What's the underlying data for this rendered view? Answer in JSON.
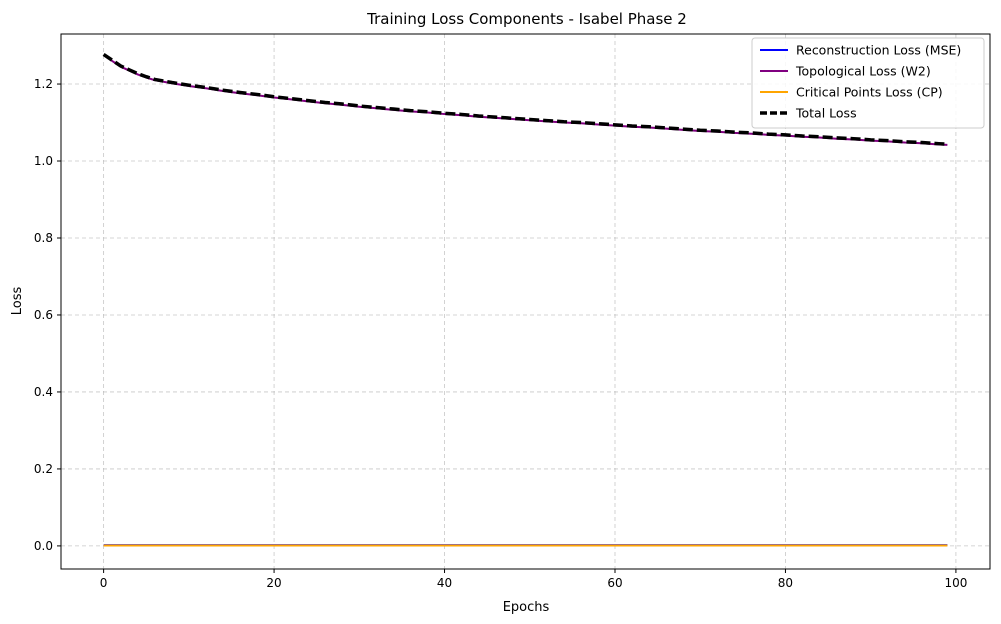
{
  "chart_data": {
    "type": "line",
    "title": "Training Loss Components - Isabel Phase 2",
    "xlabel": "Epochs",
    "ylabel": "Loss",
    "xlim": [
      -5,
      104
    ],
    "ylim": [
      -0.06,
      1.33
    ],
    "xticks": [
      0,
      20,
      40,
      60,
      80,
      100
    ],
    "yticks": [
      0.0,
      0.2,
      0.4,
      0.6,
      0.8,
      1.0,
      1.2
    ],
    "ytick_labels": [
      "0.0",
      "0.2",
      "0.4",
      "0.6",
      "0.8",
      "1.0",
      "1.2"
    ],
    "grid": true,
    "legend_position": "top-right",
    "x": [
      0,
      1,
      2,
      3,
      4,
      5,
      6,
      8,
      10,
      12,
      14,
      16,
      18,
      20,
      22,
      24,
      26,
      28,
      30,
      32,
      34,
      36,
      38,
      40,
      42,
      44,
      46,
      48,
      50,
      52,
      54,
      56,
      58,
      60,
      62,
      64,
      66,
      68,
      70,
      72,
      74,
      76,
      78,
      80,
      82,
      84,
      86,
      88,
      90,
      92,
      94,
      96,
      98,
      99
    ],
    "series": [
      {
        "name": "Reconstruction Loss (MSE)",
        "color": "#0000ff",
        "style": "solid",
        "values": [
          0.002,
          0.002,
          0.002,
          0.002,
          0.002,
          0.002,
          0.002,
          0.002,
          0.002,
          0.002,
          0.002,
          0.002,
          0.002,
          0.002,
          0.002,
          0.002,
          0.002,
          0.002,
          0.002,
          0.002,
          0.002,
          0.002,
          0.002,
          0.002,
          0.002,
          0.002,
          0.002,
          0.002,
          0.002,
          0.002,
          0.002,
          0.002,
          0.002,
          0.002,
          0.002,
          0.002,
          0.002,
          0.002,
          0.002,
          0.002,
          0.002,
          0.002,
          0.002,
          0.002,
          0.002,
          0.002,
          0.002,
          0.002,
          0.002,
          0.002,
          0.002,
          0.002,
          0.002,
          0.002
        ]
      },
      {
        "name": "Topological Loss (W2)",
        "color": "#800080",
        "style": "solid",
        "values": [
          1.275,
          1.26,
          1.245,
          1.235,
          1.225,
          1.217,
          1.21,
          1.202,
          1.195,
          1.189,
          1.182,
          1.176,
          1.171,
          1.165,
          1.16,
          1.155,
          1.15,
          1.146,
          1.141,
          1.137,
          1.133,
          1.129,
          1.126,
          1.122,
          1.119,
          1.115,
          1.112,
          1.109,
          1.106,
          1.103,
          1.1,
          1.098,
          1.095,
          1.092,
          1.089,
          1.087,
          1.084,
          1.081,
          1.078,
          1.076,
          1.073,
          1.071,
          1.068,
          1.066,
          1.063,
          1.061,
          1.058,
          1.056,
          1.053,
          1.051,
          1.048,
          1.046,
          1.043,
          1.042
        ]
      },
      {
        "name": "Critical Points Loss (CP)",
        "color": "#ffa500",
        "style": "solid",
        "values": [
          0.001,
          0.001,
          0.001,
          0.001,
          0.001,
          0.001,
          0.001,
          0.001,
          0.001,
          0.001,
          0.001,
          0.001,
          0.001,
          0.001,
          0.001,
          0.001,
          0.001,
          0.001,
          0.001,
          0.001,
          0.001,
          0.001,
          0.001,
          0.001,
          0.001,
          0.001,
          0.001,
          0.001,
          0.001,
          0.001,
          0.001,
          0.001,
          0.001,
          0.001,
          0.001,
          0.001,
          0.001,
          0.001,
          0.001,
          0.001,
          0.001,
          0.001,
          0.001,
          0.001,
          0.001,
          0.001,
          0.001,
          0.001,
          0.001,
          0.001,
          0.001,
          0.001,
          0.001,
          0.001
        ]
      },
      {
        "name": "Total Loss",
        "color": "#000000",
        "style": "dashed",
        "values": [
          1.277,
          1.262,
          1.247,
          1.237,
          1.227,
          1.219,
          1.212,
          1.204,
          1.197,
          1.191,
          1.184,
          1.178,
          1.173,
          1.167,
          1.162,
          1.157,
          1.152,
          1.148,
          1.143,
          1.139,
          1.135,
          1.131,
          1.128,
          1.124,
          1.121,
          1.117,
          1.114,
          1.111,
          1.108,
          1.105,
          1.102,
          1.1,
          1.097,
          1.094,
          1.091,
          1.089,
          1.086,
          1.083,
          1.08,
          1.078,
          1.075,
          1.073,
          1.07,
          1.068,
          1.065,
          1.063,
          1.06,
          1.058,
          1.055,
          1.053,
          1.05,
          1.048,
          1.045,
          1.044
        ]
      }
    ]
  }
}
